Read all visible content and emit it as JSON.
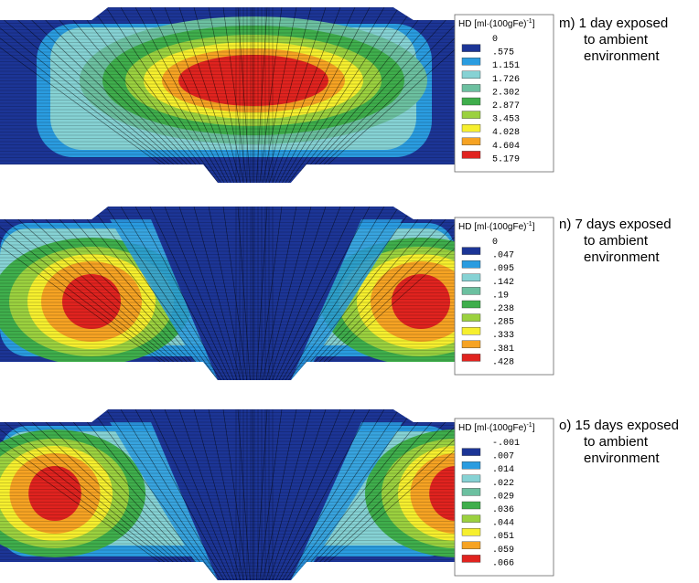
{
  "panels": [
    {
      "legend": {
        "title": "HD [ml·(100gFe)",
        "title_sup": "-1",
        "title_end": "]",
        "values": [
          "0",
          ".575",
          "1.151",
          "1.726",
          "2.302",
          "2.877",
          "3.453",
          "4.028",
          "4.604",
          "5.179"
        ]
      },
      "caption": [
        "m) 1 day exposed",
        "to ambient",
        "environment"
      ]
    },
    {
      "legend": {
        "title": "HD [ml·(100gFe)",
        "title_sup": "-1",
        "title_end": "]",
        "values": [
          "0",
          ".047",
          ".095",
          ".142",
          ".19",
          ".238",
          ".285",
          ".333",
          ".381",
          ".428"
        ]
      },
      "caption": [
        "n) 7 days exposed",
        "to ambient",
        "environment"
      ]
    },
    {
      "legend": {
        "title": "HD [ml·(100gFe)",
        "title_sup": "-1",
        "title_end": "]",
        "values": [
          "-.001",
          ".007",
          ".014",
          ".022",
          ".029",
          ".036",
          ".044",
          ".051",
          ".059",
          ".066"
        ]
      },
      "caption": [
        "o) 15 days exposed",
        "to ambient",
        "environment"
      ]
    }
  ]
}
